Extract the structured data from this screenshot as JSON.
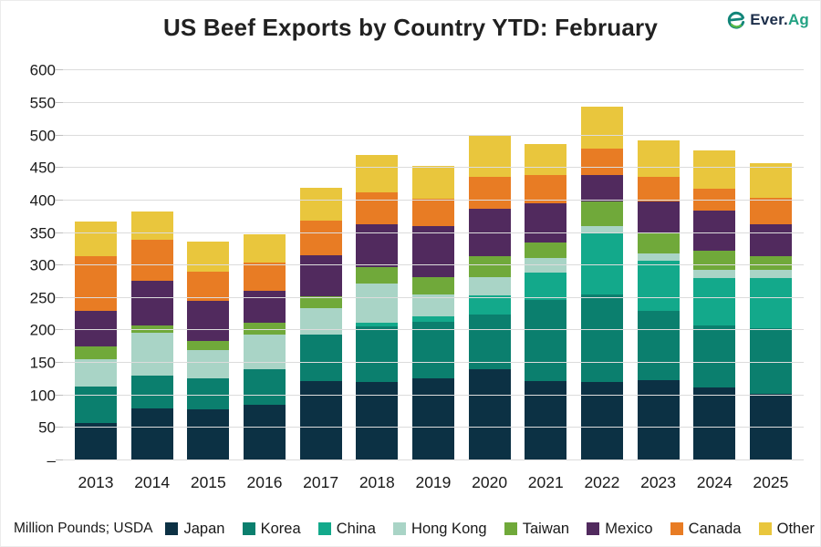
{
  "header": {
    "title": "US Beef Exports by Country YTD: February",
    "logo": {
      "text_primary": "Ever.",
      "text_secondary": "Ag"
    }
  },
  "footer": {
    "source_label": "Million Pounds; USDA"
  },
  "colors": {
    "gridline": "#dcdcdc",
    "axis_text": "#1a1a1a",
    "title_text": "#212121",
    "logo_navy": "#1c2e4a",
    "logo_teal": "#23a283"
  },
  "chart_data": {
    "type": "bar",
    "subtype": "stacked-vertical",
    "title": "US Beef Exports by Country YTD: February",
    "unit": "Million Pounds",
    "source": "USDA",
    "grid": true,
    "legend_position": "bottom",
    "categories": [
      "2013",
      "2014",
      "2015",
      "2016",
      "2017",
      "2018",
      "2019",
      "2020",
      "2021",
      "2022",
      "2023",
      "2024",
      "2025"
    ],
    "series": [
      {
        "name": "Japan",
        "color": "#0c3144",
        "values": [
          58,
          80,
          79,
          86,
          122,
          120,
          126,
          141,
          122,
          120,
          124,
          112,
          102
        ]
      },
      {
        "name": "Korea",
        "color": "#0b7f6e",
        "values": [
          56,
          51,
          48,
          55,
          71,
          86,
          88,
          84,
          125,
          135,
          106,
          96,
          102
        ]
      },
      {
        "name": "China",
        "color": "#13a98b",
        "values": [
          0,
          0,
          0,
          0,
          0,
          6,
          8,
          29,
          42,
          95,
          78,
          73,
          77
        ]
      },
      {
        "name": "Hong Kong",
        "color": "#a9d4c6",
        "values": [
          42,
          66,
          43,
          53,
          41,
          60,
          33,
          28,
          22,
          11,
          11,
          13,
          13
        ]
      },
      {
        "name": "Taiwan",
        "color": "#70a93a",
        "values": [
          19,
          11,
          14,
          18,
          19,
          25,
          27,
          32,
          24,
          38,
          30,
          29,
          20
        ]
      },
      {
        "name": "Mexico",
        "color": "#512a5e",
        "values": [
          55,
          69,
          61,
          49,
          63,
          66,
          78,
          74,
          61,
          40,
          50,
          61,
          50
        ]
      },
      {
        "name": "Canada",
        "color": "#e87c24",
        "values": [
          85,
          63,
          45,
          43,
          53,
          50,
          43,
          48,
          43,
          41,
          38,
          34,
          40
        ]
      },
      {
        "name": "Other",
        "color": "#e9c63d",
        "values": [
          53,
          43,
          47,
          44,
          50,
          57,
          50,
          64,
          48,
          65,
          56,
          59,
          53
        ]
      }
    ],
    "totals": [
      368,
      383,
      337,
      348,
      419,
      470,
      453,
      500,
      487,
      545,
      493,
      477,
      457
    ],
    "y_axis": {
      "min": 0,
      "max": 600,
      "step": 50,
      "zero_label": "–",
      "plot_top_value": 623
    }
  }
}
